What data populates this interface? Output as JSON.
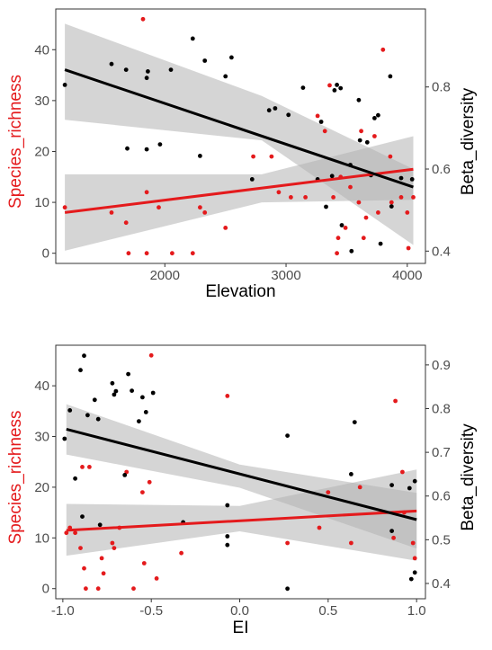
{
  "colors": {
    "richness": "#e41a1c",
    "beta": "#000000",
    "band": "#b3b3b3",
    "axis_text": "#4d4d4d",
    "label_text": "#000000"
  },
  "chart_data": [
    {
      "type": "scatter",
      "xlabel": "Elevation",
      "ylabel_left": "Species_richness",
      "ylabel_right": "Beta_diversity",
      "xlim": [
        1100,
        4150
      ],
      "ylim_left": [
        -2,
        48
      ],
      "ylim_right": [
        0.37,
        0.99
      ],
      "xticks": [
        2000,
        3000,
        4000
      ],
      "yticks_left": [
        0,
        10,
        20,
        30,
        40
      ],
      "yticks_right": [
        0.4,
        0.6,
        0.8
      ],
      "grid": false,
      "series": [
        {
          "name": "Species_richness",
          "axis": "left",
          "color": "#e41a1c",
          "points": [
            [
              1175,
              9
            ],
            [
              1560,
              8
            ],
            [
              1680,
              6
            ],
            [
              1700,
              0
            ],
            [
              1820,
              46
            ],
            [
              1850,
              12
            ],
            [
              1850,
              0
            ],
            [
              1950,
              9
            ],
            [
              2060,
              0
            ],
            [
              2230,
              0
            ],
            [
              2290,
              9
            ],
            [
              2330,
              8
            ],
            [
              2500,
              5
            ],
            [
              2730,
              19
            ],
            [
              2880,
              19
            ],
            [
              2940,
              12
            ],
            [
              3040,
              11
            ],
            [
              3160,
              11
            ],
            [
              3260,
              27
            ],
            [
              3320,
              24
            ],
            [
              3360,
              33
            ],
            [
              3390,
              11
            ],
            [
              3420,
              0
            ],
            [
              3430,
              3
            ],
            [
              3450,
              15
            ],
            [
              3490,
              5
            ],
            [
              3530,
              13
            ],
            [
              3600,
              10
            ],
            [
              3620,
              24
            ],
            [
              3640,
              3
            ],
            [
              3660,
              7
            ],
            [
              3730,
              23
            ],
            [
              3760,
              8
            ],
            [
              3800,
              40
            ],
            [
              3860,
              19
            ],
            [
              3870,
              10
            ],
            [
              3950,
              11
            ],
            [
              4000,
              8
            ],
            [
              4010,
              1
            ],
            [
              4050,
              11
            ]
          ],
          "fit": {
            "x": [
              1175,
              4050
            ],
            "y": [
              8,
              16.5
            ]
          },
          "ci": {
            "x": [
              1175,
              2800,
              4050
            ],
            "lower": [
              0.5,
              10,
              10.5
            ],
            "upper": [
              15.5,
              15.5,
              23
            ]
          }
        },
        {
          "name": "Beta_diversity",
          "axis": "right",
          "color": "#000000",
          "points": [
            [
              1175,
              0.805
            ],
            [
              1560,
              0.856
            ],
            [
              1680,
              0.842
            ],
            [
              1690,
              0.65
            ],
            [
              1850,
              0.822
            ],
            [
              1860,
              0.838
            ],
            [
              1850,
              0.648
            ],
            [
              1960,
              0.66
            ],
            [
              2050,
              0.842
            ],
            [
              2230,
              0.918
            ],
            [
              2290,
              0.632
            ],
            [
              2330,
              0.864
            ],
            [
              2500,
              0.826
            ],
            [
              2550,
              0.872
            ],
            [
              2720,
              0.575
            ],
            [
              2860,
              0.743
            ],
            [
              2910,
              0.748
            ],
            [
              3020,
              0.732
            ],
            [
              3140,
              0.798
            ],
            [
              3260,
              0.575
            ],
            [
              3290,
              0.715
            ],
            [
              3330,
              0.508
            ],
            [
              3380,
              0.583
            ],
            [
              3400,
              0.792
            ],
            [
              3420,
              0.805
            ],
            [
              3450,
              0.797
            ],
            [
              3460,
              0.463
            ],
            [
              3530,
              0.61
            ],
            [
              3540,
              0.4
            ],
            [
              3600,
              0.768
            ],
            [
              3610,
              0.67
            ],
            [
              3670,
              0.665
            ],
            [
              3700,
              0.585
            ],
            [
              3730,
              0.724
            ],
            [
              3760,
              0.731
            ],
            [
              3780,
              0.418
            ],
            [
              3860,
              0.826
            ],
            [
              3870,
              0.509
            ],
            [
              3950,
              0.578
            ],
            [
              4040,
              0.575
            ]
          ],
          "fit": {
            "x": [
              1175,
              4050
            ],
            "y": [
              0.842,
              0.556
            ]
          },
          "ci": {
            "x": [
              1175,
              2800,
              4050
            ],
            "lower": [
              0.72,
              0.67,
              0.415
            ],
            "upper": [
              0.954,
              0.778,
              0.6
            ]
          }
        }
      ]
    },
    {
      "type": "scatter",
      "xlabel": "EI",
      "ylabel_left": "Species_richness",
      "ylabel_right": "Beta_diversity",
      "xlim": [
        -1.04,
        1.05
      ],
      "ylim_left": [
        -2,
        48
      ],
      "ylim_right": [
        0.365,
        0.945
      ],
      "xticks": [
        -1.0,
        -0.5,
        0.0,
        0.5,
        1.0
      ],
      "xtick_labels": [
        "-1.0",
        "-0.5",
        "0.0",
        "0.5",
        "1.0"
      ],
      "yticks_left": [
        0,
        10,
        20,
        30,
        40
      ],
      "yticks_right": [
        0.4,
        0.5,
        0.6,
        0.7,
        0.8,
        0.9
      ],
      "grid": false,
      "series": [
        {
          "name": "Species_richness",
          "axis": "left",
          "color": "#e41a1c",
          "points": [
            [
              -0.98,
              11
            ],
            [
              -0.96,
              12
            ],
            [
              -0.93,
              11
            ],
            [
              -0.9,
              8
            ],
            [
              -0.89,
              24
            ],
            [
              -0.88,
              4
            ],
            [
              -0.87,
              0
            ],
            [
              -0.85,
              24
            ],
            [
              -0.8,
              0
            ],
            [
              -0.78,
              6
            ],
            [
              -0.77,
              3
            ],
            [
              -0.72,
              9
            ],
            [
              -0.71,
              8
            ],
            [
              -0.68,
              12
            ],
            [
              -0.64,
              23
            ],
            [
              -0.6,
              0
            ],
            [
              -0.55,
              19
            ],
            [
              -0.54,
              5
            ],
            [
              -0.51,
              21
            ],
            [
              -0.5,
              46
            ],
            [
              -0.47,
              2
            ],
            [
              -0.33,
              7
            ],
            [
              -0.07,
              38
            ],
            [
              0.27,
              9
            ],
            [
              0.45,
              12
            ],
            [
              0.5,
              19
            ],
            [
              0.63,
              9
            ],
            [
              0.68,
              20
            ],
            [
              0.87,
              10
            ],
            [
              0.88,
              37
            ],
            [
              0.92,
              23
            ],
            [
              0.93,
              15
            ],
            [
              0.98,
              9
            ],
            [
              0.99,
              6
            ]
          ],
          "fit": {
            "x": [
              -0.98,
              1.0
            ],
            "y": [
              11.5,
              15.3
            ]
          },
          "ci": {
            "x": [
              -0.98,
              0.0,
              1.0
            ],
            "lower": [
              6.5,
              11.3,
              5.5
            ],
            "upper": [
              16.7,
              16.3,
              23.5
            ]
          }
        },
        {
          "name": "Beta_diversity",
          "axis": "right",
          "color": "#000000",
          "points": [
            [
              -0.99,
              0.731
            ],
            [
              -0.96,
              0.796
            ],
            [
              -0.93,
              0.64
            ],
            [
              -0.9,
              0.888
            ],
            [
              -0.89,
              0.553
            ],
            [
              -0.88,
              0.921
            ],
            [
              -0.86,
              0.785
            ],
            [
              -0.82,
              0.82
            ],
            [
              -0.8,
              0.776
            ],
            [
              -0.79,
              0.534
            ],
            [
              -0.72,
              0.858
            ],
            [
              -0.71,
              0.832
            ],
            [
              -0.7,
              0.84
            ],
            [
              -0.65,
              0.648
            ],
            [
              -0.63,
              0.879
            ],
            [
              -0.61,
              0.841
            ],
            [
              -0.57,
              0.771
            ],
            [
              -0.55,
              0.826
            ],
            [
              -0.53,
              0.792
            ],
            [
              -0.49,
              0.836
            ],
            [
              -0.32,
              0.54
            ],
            [
              -0.07,
              0.579
            ],
            [
              -0.07,
              0.508
            ],
            [
              -0.07,
              0.488
            ],
            [
              0.27,
              0.388
            ],
            [
              0.27,
              0.738
            ],
            [
              0.63,
              0.65
            ],
            [
              0.65,
              0.769
            ],
            [
              0.86,
              0.625
            ],
            [
              0.86,
              0.52
            ],
            [
              0.96,
              0.618
            ],
            [
              0.97,
              0.41
            ],
            [
              0.99,
              0.634
            ],
            [
              0.99,
              0.425
            ]
          ],
          "fit": {
            "x": [
              -0.98,
              1.0
            ],
            "y": [
              0.753,
              0.546
            ]
          },
          "ci": {
            "x": [
              -0.98,
              0.0,
              1.0
            ],
            "lower": [
              0.695,
              0.619,
              0.48
            ],
            "upper": [
              0.81,
              0.672,
              0.607
            ]
          }
        }
      ]
    }
  ]
}
